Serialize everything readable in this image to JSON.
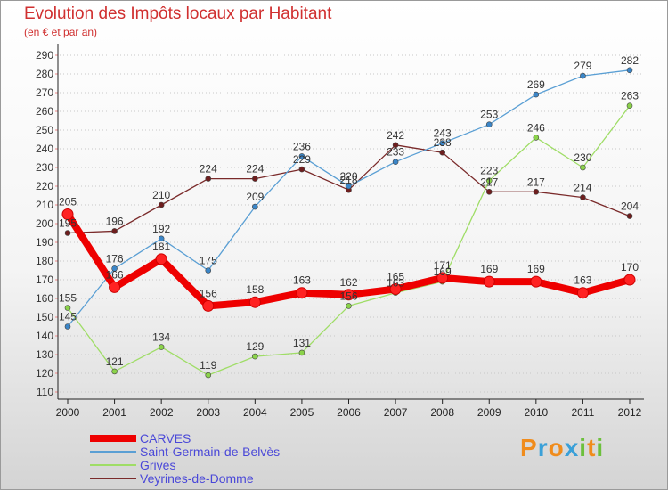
{
  "title": "Evolution des Impôts locaux par Habitant",
  "subtitle": "(en € et par an)",
  "brand": {
    "letters": [
      {
        "ch": "P",
        "color": "#f08c1c"
      },
      {
        "ch": "r",
        "color": "#3aa0d8"
      },
      {
        "ch": "o",
        "color": "#f08c1c"
      },
      {
        "ch": "x",
        "color": "#3aa0d8"
      },
      {
        "ch": "i",
        "color": "#6cc03c"
      },
      {
        "ch": "t",
        "color": "#f08c1c"
      },
      {
        "ch": "i",
        "color": "#6cc03c"
      }
    ]
  },
  "chart_data": {
    "type": "line",
    "title": "Evolution des Impôts locaux par Habitant",
    "subtitle": "(en € et par an)",
    "x": [
      "2000",
      "2001",
      "2002",
      "2003",
      "2004",
      "2005",
      "2006",
      "2007",
      "2008",
      "2009",
      "2010",
      "2011",
      "2012"
    ],
    "ylim": [
      110,
      290
    ],
    "yticks": [
      110,
      120,
      130,
      140,
      150,
      160,
      170,
      180,
      190,
      200,
      210,
      220,
      230,
      240,
      250,
      260,
      270,
      280,
      290
    ],
    "grid": "horizontal dotted",
    "legend_position": "bottom-left",
    "series": [
      {
        "name": "CARVES",
        "color": "#ee0000",
        "width": 8,
        "marker_fill": "#ff2222",
        "values": [
          205,
          166,
          181,
          156,
          158,
          163,
          162,
          165,
          171,
          169,
          169,
          163,
          170
        ],
        "labels": [
          "205",
          "166",
          "181",
          "156",
          "158",
          "163",
          "162",
          "165",
          "171",
          "169",
          "169",
          "163",
          "170"
        ]
      },
      {
        "name": "Saint-Germain-de-Belvès",
        "color": "#5a9fd4",
        "width": 1.3,
        "marker_fill": "#3b86c8",
        "values": [
          145,
          176,
          192,
          175,
          209,
          236,
          220,
          233,
          243,
          253,
          269,
          279,
          282
        ],
        "labels": [
          "145",
          "176",
          "192",
          "175",
          "209",
          "236",
          "220",
          "233",
          "243",
          "253",
          "269",
          "279",
          "282"
        ]
      },
      {
        "name": "Grives",
        "color": "#9fdd66",
        "width": 1.3,
        "marker_fill": "#8bd34a",
        "values": [
          155,
          121,
          134,
          119,
          129,
          131,
          156,
          163,
          169,
          223,
          246,
          230,
          263
        ],
        "labels": [
          "155",
          "121",
          "134",
          "119",
          "129",
          "131",
          "156",
          "163",
          "169",
          "223",
          "246",
          "230",
          "263"
        ]
      },
      {
        "name": "Veyrines-de-Domme",
        "color": "#7a2a2a",
        "width": 1.3,
        "marker_fill": "#6e1e1e",
        "values": [
          195,
          196,
          210,
          224,
          224,
          229,
          218,
          242,
          238,
          217,
          217,
          214,
          204
        ],
        "labels": [
          "195",
          "196",
          "210",
          "224",
          "224",
          "229",
          "218",
          "242",
          "238",
          "217",
          "217",
          "214",
          "204"
        ]
      }
    ]
  }
}
